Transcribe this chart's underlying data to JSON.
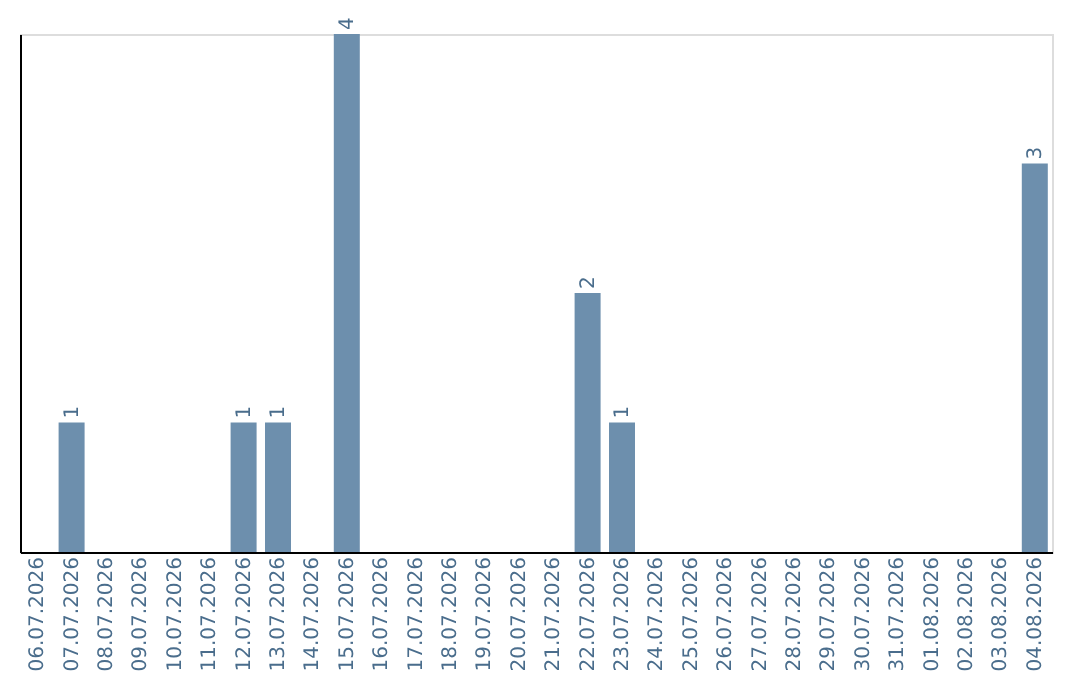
{
  "chart_data": {
    "type": "bar",
    "categories": [
      "06.07.2026",
      "07.07.2026",
      "08.07.2026",
      "09.07.2026",
      "10.07.2026",
      "11.07.2026",
      "12.07.2026",
      "13.07.2026",
      "14.07.2026",
      "15.07.2026",
      "16.07.2026",
      "17.07.2026",
      "18.07.2026",
      "19.07.2026",
      "20.07.2026",
      "21.07.2026",
      "22.07.2026",
      "23.07.2026",
      "24.07.2026",
      "25.07.2026",
      "26.07.2026",
      "27.07.2026",
      "28.07.2026",
      "29.07.2026",
      "30.07.2026",
      "31.07.2026",
      "01.08.2026",
      "02.08.2026",
      "03.08.2026",
      "04.08.2026"
    ],
    "values": [
      0,
      1,
      0,
      0,
      0,
      0,
      1,
      1,
      0,
      4,
      0,
      0,
      0,
      0,
      0,
      0,
      2,
      1,
      0,
      0,
      0,
      0,
      0,
      0,
      0,
      0,
      0,
      0,
      0,
      3
    ],
    "value_labels": [
      null,
      "1",
      null,
      null,
      null,
      null,
      "1",
      "1",
      null,
      "4",
      null,
      null,
      null,
      null,
      null,
      null,
      "2",
      "1",
      null,
      null,
      null,
      null,
      null,
      null,
      null,
      null,
      null,
      null,
      null,
      "3"
    ],
    "color": "#6d8fad",
    "ylim": [
      0,
      4
    ],
    "tick_labels": "x",
    "grid": false
  }
}
